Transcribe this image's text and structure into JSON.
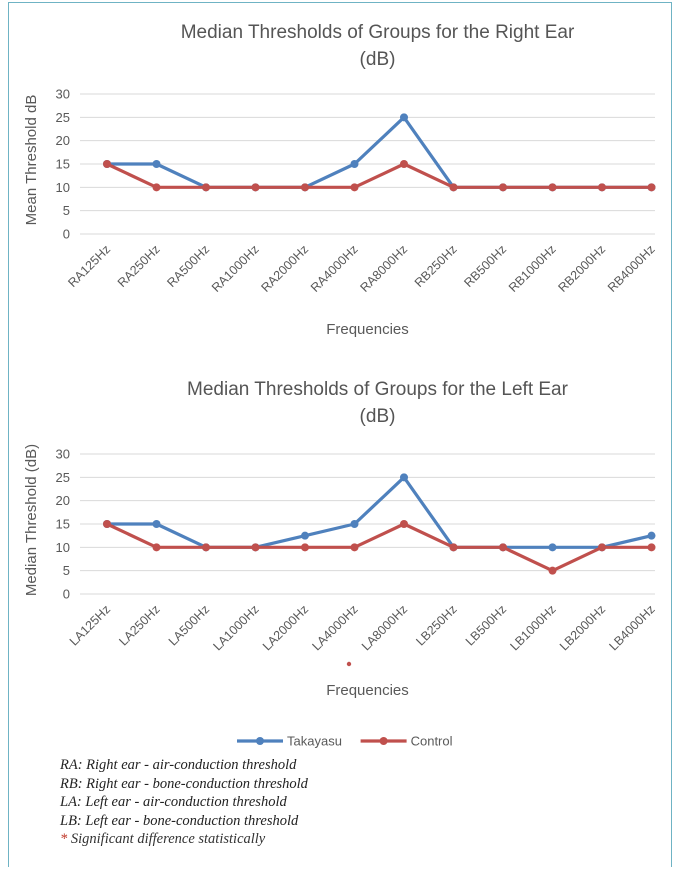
{
  "chart_data": [
    {
      "type": "line",
      "title": "Median Thresholds of Groups for the Right Ear",
      "subtitle": "(dB)",
      "xlabel": "Frequencies",
      "ylabel": "Mean Threshold  dB",
      "ylim": [
        0,
        30
      ],
      "yticks": [
        "0",
        "5",
        "10",
        "15",
        "20",
        "25",
        "30"
      ],
      "grid": true,
      "categories": [
        "RA125Hz",
        "RA250Hz",
        "RA500Hz",
        "RA1000Hz",
        "RA2000Hz",
        "RA4000Hz",
        "RA8000Hz",
        "RB250Hz",
        "RB500Hz",
        "RB1000Hz",
        "RB2000Hz",
        "RB4000Hz"
      ],
      "series": [
        {
          "name": "Takayasu",
          "color": "#4f81bd",
          "values": [
            15,
            15,
            10,
            10,
            10,
            15,
            25,
            10,
            10,
            10,
            10,
            10
          ]
        },
        {
          "name": "Control",
          "color": "#c0504d",
          "values": [
            15,
            10,
            10,
            10,
            10,
            10,
            15,
            10,
            10,
            10,
            10,
            10
          ]
        }
      ]
    },
    {
      "type": "line",
      "title": "Median Thresholds of Groups for the Left Ear",
      "subtitle": "(dB)",
      "xlabel": "Frequencies",
      "ylabel": "Median Threshold (dB)",
      "ylim": [
        0,
        30
      ],
      "yticks": [
        "0",
        "5",
        "10",
        "15",
        "20",
        "25",
        "30"
      ],
      "grid": true,
      "categories": [
        "LA125Hz",
        "LA250Hz",
        "LA500Hz",
        "LA1000Hz",
        "LA2000Hz",
        "LA4000Hz",
        "LA8000Hz",
        "LB250Hz",
        "LB500Hz",
        "LB1000Hz",
        "LB2000Hz",
        "LB4000Hz"
      ],
      "marked_categories": [
        "LA8000Hz"
      ],
      "series": [
        {
          "name": "Takayasu",
          "color": "#4f81bd",
          "values": [
            15,
            15,
            10,
            10,
            12.5,
            15,
            25,
            10,
            10,
            10,
            10,
            12.5
          ]
        },
        {
          "name": "Control",
          "color": "#c0504d",
          "values": [
            15,
            10,
            10,
            10,
            10,
            10,
            15,
            10,
            10,
            5,
            10,
            10
          ]
        }
      ]
    }
  ],
  "legend": {
    "placement": "bottom",
    "items": [
      {
        "label": "Takayasu",
        "color": "#4f81bd"
      },
      {
        "label": "Control",
        "color": "#c0504d"
      }
    ]
  },
  "notes": {
    "ra": "RA: Right ear - air-conduction threshold",
    "rb": "RB: Right ear - bone-conduction threshold",
    "la": "LA: Left ear - air-conduction threshold",
    "lb": "LB: Left ear - bone-conduction threshold",
    "star": "*",
    "sig": " Significant difference statistically"
  }
}
